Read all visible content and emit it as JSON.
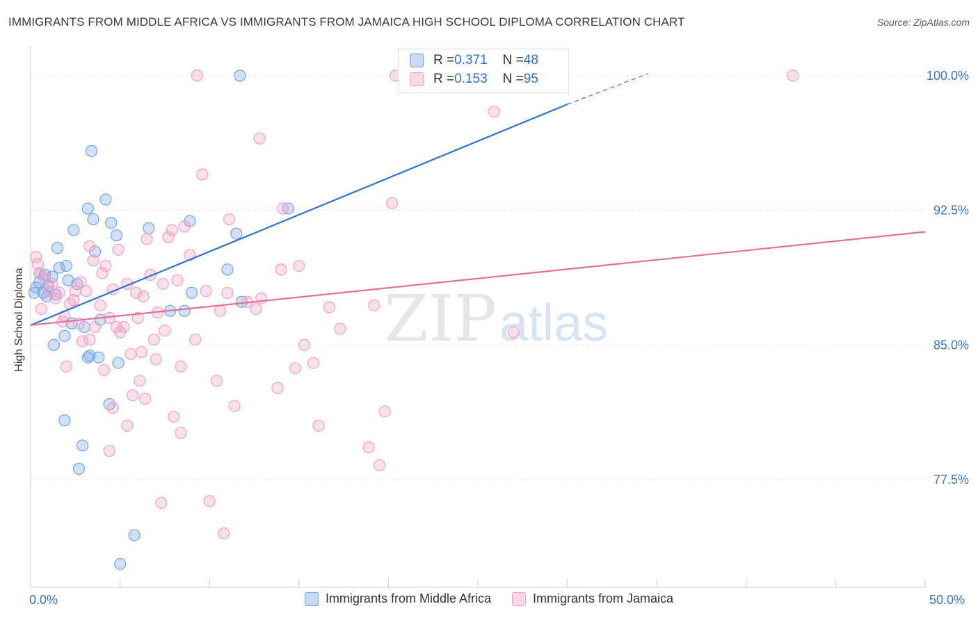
{
  "title": "IMMIGRANTS FROM MIDDLE AFRICA VS IMMIGRANTS FROM JAMAICA HIGH SCHOOL DIPLOMA CORRELATION CHART",
  "source": "Source: ZipAtlas.com",
  "watermark": {
    "zip": "ZIP",
    "atlas": "atlas"
  },
  "stats": [
    {
      "r_label": "R = ",
      "r_value": "0.371",
      "n_label": "N = ",
      "n_value": "48",
      "color": "#6fa3e6"
    },
    {
      "r_label": "R = ",
      "r_value": "0.153",
      "n_label": "N = ",
      "n_value": "95",
      "color": "#f0a0bd"
    }
  ],
  "chart_data": {
    "type": "scatter",
    "xlabel": "",
    "ylabel": "High School Diploma",
    "xlim": [
      0,
      50
    ],
    "ylim": [
      71.5,
      101.5
    ],
    "x_tick_labels": [
      "0.0%",
      "50.0%"
    ],
    "y_ticks": [
      77.5,
      85.0,
      92.5,
      100.0
    ],
    "y_tick_labels": [
      "77.5%",
      "85.0%",
      "92.5%",
      "100.0%"
    ],
    "grid": true,
    "legend_position": "bottom",
    "series": [
      {
        "name": "Immigrants from Middle Africa",
        "color": "#6fa3e6",
        "line_color": "#2b73cf",
        "trend": {
          "x": [
            0,
            30
          ],
          "y": [
            86.1,
            98.4
          ],
          "dashed_to": [
            34.5,
            100.1
          ]
        },
        "points": [
          [
            0.3,
            88.2
          ],
          [
            0.5,
            88.5
          ],
          [
            0.5,
            89.0
          ],
          [
            0.7,
            87.9
          ],
          [
            0.8,
            88.9
          ],
          [
            0.9,
            87.7
          ],
          [
            1.0,
            88.3
          ],
          [
            1.2,
            88.8
          ],
          [
            1.4,
            87.8
          ],
          [
            1.6,
            89.3
          ],
          [
            1.5,
            90.4
          ],
          [
            2.0,
            89.4
          ],
          [
            2.1,
            88.6
          ],
          [
            1.9,
            85.5
          ],
          [
            1.3,
            85.0
          ],
          [
            2.3,
            86.2
          ],
          [
            2.4,
            91.4
          ],
          [
            2.6,
            88.4
          ],
          [
            3.2,
            92.6
          ],
          [
            3.2,
            84.3
          ],
          [
            3.3,
            84.4
          ],
          [
            3.4,
            95.8
          ],
          [
            3.5,
            92.0
          ],
          [
            3.6,
            90.2
          ],
          [
            3.8,
            84.3
          ],
          [
            3.9,
            86.4
          ],
          [
            4.2,
            93.1
          ],
          [
            4.4,
            81.7
          ],
          [
            4.5,
            91.8
          ],
          [
            4.8,
            91.1
          ],
          [
            4.9,
            84.0
          ],
          [
            2.9,
            79.4
          ],
          [
            2.7,
            78.1
          ],
          [
            1.9,
            80.8
          ],
          [
            5.8,
            74.4
          ],
          [
            5.0,
            72.8
          ],
          [
            6.6,
            91.5
          ],
          [
            7.8,
            86.9
          ],
          [
            8.6,
            86.9
          ],
          [
            8.9,
            91.9
          ],
          [
            9.0,
            87.9
          ],
          [
            11.0,
            89.2
          ],
          [
            11.5,
            91.2
          ],
          [
            11.8,
            87.4
          ],
          [
            11.7,
            100.0
          ],
          [
            14.4,
            92.6
          ],
          [
            0.2,
            87.9
          ],
          [
            3.0,
            86.0
          ]
        ]
      },
      {
        "name": "Immigrants from Jamaica",
        "color": "#f0a0bd",
        "line_color": "#e36f98",
        "trend": {
          "x": [
            0,
            50
          ],
          "y": [
            86.1,
            91.3
          ]
        },
        "points": [
          [
            0.3,
            89.9
          ],
          [
            0.4,
            89.5
          ],
          [
            0.5,
            89.0
          ],
          [
            0.8,
            88.7
          ],
          [
            1.0,
            88.0
          ],
          [
            1.2,
            88.4
          ],
          [
            1.4,
            87.6
          ],
          [
            1.6,
            87.9
          ],
          [
            1.8,
            86.3
          ],
          [
            1.9,
            86.6
          ],
          [
            2.0,
            83.8
          ],
          [
            2.2,
            87.3
          ],
          [
            2.4,
            87.5
          ],
          [
            2.5,
            88.0
          ],
          [
            2.7,
            86.2
          ],
          [
            2.9,
            85.2
          ],
          [
            3.1,
            88.0
          ],
          [
            3.3,
            85.3
          ],
          [
            3.5,
            89.7
          ],
          [
            3.6,
            86.0
          ],
          [
            3.3,
            90.5
          ],
          [
            3.9,
            87.2
          ],
          [
            4.0,
            89.0
          ],
          [
            4.1,
            83.6
          ],
          [
            4.2,
            89.4
          ],
          [
            4.4,
            86.5
          ],
          [
            4.6,
            88.1
          ],
          [
            4.8,
            86.0
          ],
          [
            4.9,
            90.3
          ],
          [
            5.0,
            85.7
          ],
          [
            4.4,
            79.1
          ],
          [
            4.6,
            81.5
          ],
          [
            5.2,
            86.0
          ],
          [
            5.4,
            88.4
          ],
          [
            5.4,
            80.5
          ],
          [
            5.6,
            84.5
          ],
          [
            5.7,
            82.2
          ],
          [
            5.9,
            87.9
          ],
          [
            6.0,
            86.5
          ],
          [
            6.2,
            84.6
          ],
          [
            6.3,
            87.7
          ],
          [
            6.4,
            82.0
          ],
          [
            6.5,
            90.9
          ],
          [
            6.7,
            88.9
          ],
          [
            6.9,
            85.3
          ],
          [
            7.0,
            84.2
          ],
          [
            7.1,
            86.8
          ],
          [
            7.3,
            76.2
          ],
          [
            7.4,
            88.4
          ],
          [
            7.5,
            85.8
          ],
          [
            7.7,
            91.0
          ],
          [
            7.9,
            91.4
          ],
          [
            8.0,
            81.0
          ],
          [
            8.2,
            88.6
          ],
          [
            8.4,
            83.8
          ],
          [
            8.4,
            80.1
          ],
          [
            8.6,
            91.6
          ],
          [
            8.9,
            90.0
          ],
          [
            9.2,
            85.3
          ],
          [
            9.3,
            100.0
          ],
          [
            9.6,
            94.5
          ],
          [
            10.0,
            76.3
          ],
          [
            10.4,
            83.0
          ],
          [
            10.6,
            86.9
          ],
          [
            10.8,
            74.5
          ],
          [
            11.0,
            87.9
          ],
          [
            11.1,
            92.0
          ],
          [
            11.4,
            81.6
          ],
          [
            12.1,
            87.4
          ],
          [
            12.6,
            87.0
          ],
          [
            12.8,
            96.5
          ],
          [
            12.9,
            87.6
          ],
          [
            13.8,
            82.6
          ],
          [
            14.0,
            89.2
          ],
          [
            14.1,
            92.6
          ],
          [
            14.8,
            83.7
          ],
          [
            15.0,
            89.4
          ],
          [
            15.3,
            85.0
          ],
          [
            15.8,
            84.0
          ],
          [
            16.1,
            80.5
          ],
          [
            16.7,
            87.1
          ],
          [
            17.3,
            85.9
          ],
          [
            18.9,
            79.3
          ],
          [
            19.2,
            87.2
          ],
          [
            19.5,
            78.3
          ],
          [
            19.8,
            81.3
          ],
          [
            20.2,
            92.9
          ],
          [
            20.4,
            100.0
          ],
          [
            25.9,
            98.0
          ],
          [
            27.0,
            85.7
          ],
          [
            42.6,
            100.0
          ],
          [
            0.6,
            87.0
          ],
          [
            2.8,
            88.5
          ],
          [
            6.1,
            83.0
          ],
          [
            9.8,
            88.0
          ]
        ]
      }
    ]
  }
}
